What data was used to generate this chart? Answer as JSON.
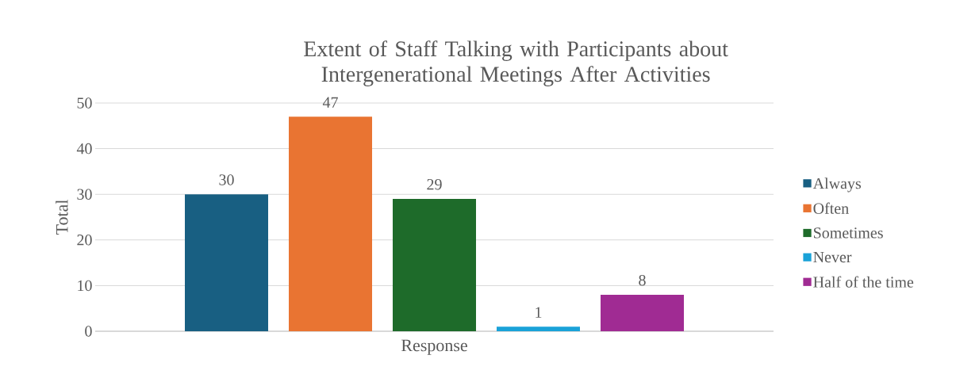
{
  "chart_data": {
    "type": "bar",
    "title": "Extent of Staff Talking with Participants about Intergenerational Meetings After Activities",
    "xlabel": "Response",
    "ylabel": "Total",
    "categories": [
      null
    ],
    "series": [
      {
        "name": "Always",
        "color": "#185f82",
        "values": [
          30
        ]
      },
      {
        "name": "Often",
        "color": "#e97432",
        "values": [
          47
        ]
      },
      {
        "name": "Sometimes",
        "color": "#1e6b2a",
        "values": [
          29
        ]
      },
      {
        "name": "Never",
        "color": "#1aa2d8",
        "values": [
          1
        ]
      },
      {
        "name": "Half of the time",
        "color": "#a02b93",
        "values": [
          8
        ]
      }
    ],
    "ylim": [
      0,
      50
    ],
    "yticks": [
      0,
      10,
      20,
      30,
      40,
      50
    ],
    "grid": "y",
    "legend": "right",
    "data_labels": true
  }
}
